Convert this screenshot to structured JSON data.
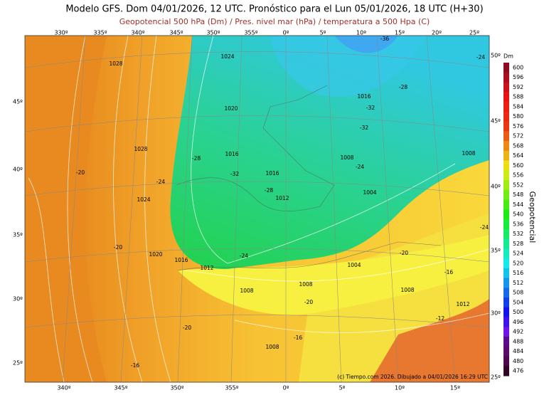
{
  "header": {
    "title": "Modelo GFS. Dom 04/01/2026, 12 UTC. Pronóstico para el Lun 05/01/2026, 18 UTC (H+30)",
    "subtitle": "Geopotencial 500 hPa (Dm) / Pres. nivel mar (hPa) / temperatura a 500 Hpa (C)"
  },
  "map": {
    "top_lon_labels": [
      "330º",
      "335º",
      "340º",
      "345º",
      "350º",
      "355º",
      "0º",
      "5º",
      "10º",
      "15º",
      "20º",
      "25º"
    ],
    "bottom_lon_labels": [
      "340º",
      "345º",
      "350º",
      "355º",
      "0º",
      "5º",
      "10º",
      "15º"
    ],
    "left_lat_labels": [
      "45º",
      "40º",
      "35º",
      "30º",
      "25º"
    ],
    "right_lat_labels": [
      "50º",
      "45º",
      "40º",
      "35º",
      "30º",
      "25º"
    ],
    "contour_labels": [
      "1028",
      "1024",
      "1020",
      "1016",
      "1028",
      "1016",
      "-28",
      "-32",
      "1016",
      "1008",
      "-24",
      "1012",
      "1004",
      "-28",
      "-24",
      "-20",
      "1024",
      "-20",
      "1020",
      "1016",
      "1012",
      "-24",
      "1004",
      "-20",
      "-16",
      "1008",
      "1008",
      "-20",
      "1008",
      "1012",
      "-12",
      "-20",
      "-16",
      "1008",
      "-16",
      "1008",
      "-32",
      "-28",
      "-36",
      "-24",
      "-24",
      "-32"
    ],
    "credit": "(c) Tiempo.com 2026. Dibujado a 04/01/2026 16:29 UTC"
  },
  "colorbar": {
    "unit": "Dm",
    "title": "Geopotencial",
    "labels": [
      600,
      596,
      592,
      588,
      584,
      580,
      576,
      572,
      568,
      564,
      560,
      556,
      552,
      548,
      544,
      540,
      536,
      532,
      528,
      524,
      520,
      516,
      512,
      508,
      504,
      500,
      496,
      492,
      488,
      484,
      480,
      476
    ]
  }
}
